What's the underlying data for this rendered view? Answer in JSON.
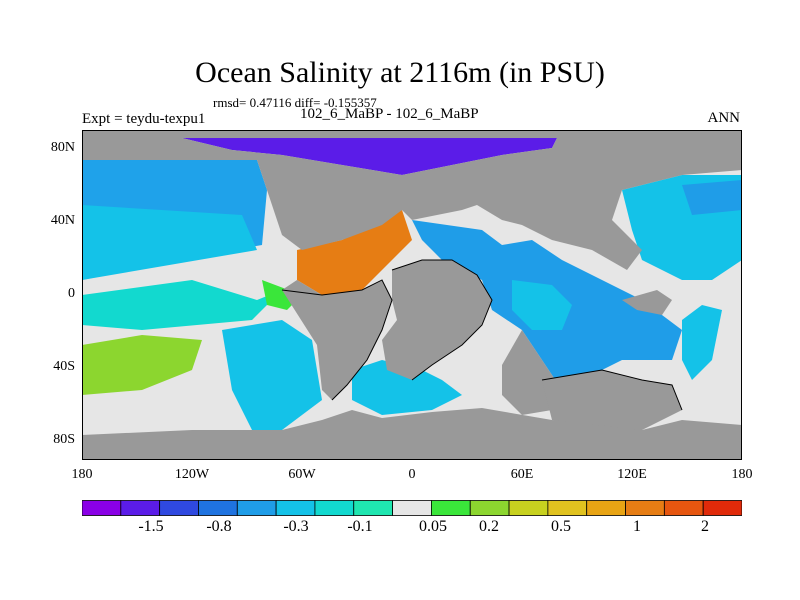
{
  "header": {
    "title": "Ocean Salinity at 2116m (in PSU)",
    "stats": "rmsd= 0.47116 diff= -0.155357",
    "left": "Expt = teydu-texpu1",
    "center": "102_6_MaBP - 102_6_MaBP",
    "right": "ANN"
  },
  "axes": {
    "y": [
      "80N",
      "40N",
      "0",
      "40S",
      "80S"
    ],
    "x": [
      "180",
      "120W",
      "60W",
      "0",
      "60E",
      "120E",
      "180"
    ]
  },
  "colorbar": {
    "colors": [
      "#8a00e6",
      "#5b1ce8",
      "#2f49e0",
      "#1f73e0",
      "#1f9de8",
      "#14c2e8",
      "#12d9cf",
      "#1fe6b0",
      "#e6e6e6",
      "#3ae63a",
      "#8cd62f",
      "#c7d11f",
      "#e0c21f",
      "#e8a414",
      "#e67d14",
      "#e6560f",
      "#e02a0a"
    ],
    "labels": [
      "-1.5",
      "-0.8",
      "-0.3",
      "-0.1",
      "0.05",
      "0.2",
      "0.5",
      "1",
      "2"
    ]
  }
}
